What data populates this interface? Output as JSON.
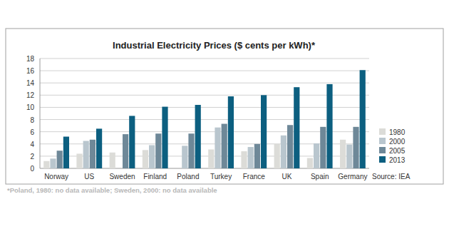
{
  "chart_data": {
    "type": "bar",
    "title": "Industrial Electricity Prices ($ cents per kWh)*",
    "categories": [
      "Norway",
      "US",
      "Sweden",
      "Finland",
      "Poland",
      "Turkey",
      "France",
      "UK",
      "Spain",
      "Germany"
    ],
    "series": [
      {
        "name": "1980",
        "color": "#dcdcd8",
        "values": [
          1.2,
          2.4,
          2.6,
          3.0,
          null,
          3.1,
          2.8,
          4.0,
          1.7,
          4.7
        ]
      },
      {
        "name": "2000",
        "color": "#b9c6ce",
        "values": [
          1.6,
          4.5,
          null,
          3.8,
          3.7,
          6.7,
          3.5,
          5.4,
          4.1,
          3.9
        ]
      },
      {
        "name": "2005",
        "color": "#6e8898",
        "values": [
          2.9,
          4.7,
          5.6,
          5.7,
          5.7,
          7.3,
          4.0,
          7.1,
          6.8,
          6.8
        ]
      },
      {
        "name": "2013",
        "color": "#0c5f80",
        "values": [
          5.2,
          6.5,
          8.6,
          10.1,
          10.4,
          11.8,
          12.0,
          13.3,
          13.8,
          16.1
        ]
      }
    ],
    "ylim": [
      0,
      18
    ],
    "yticks": [
      0,
      2,
      4,
      6,
      8,
      10,
      12,
      14,
      16,
      18
    ],
    "grid": true,
    "legend": "right",
    "annotations": [
      "Source: IEA",
      "*Poland, 1980: no data available; Sweden, 2000: no data available"
    ]
  }
}
